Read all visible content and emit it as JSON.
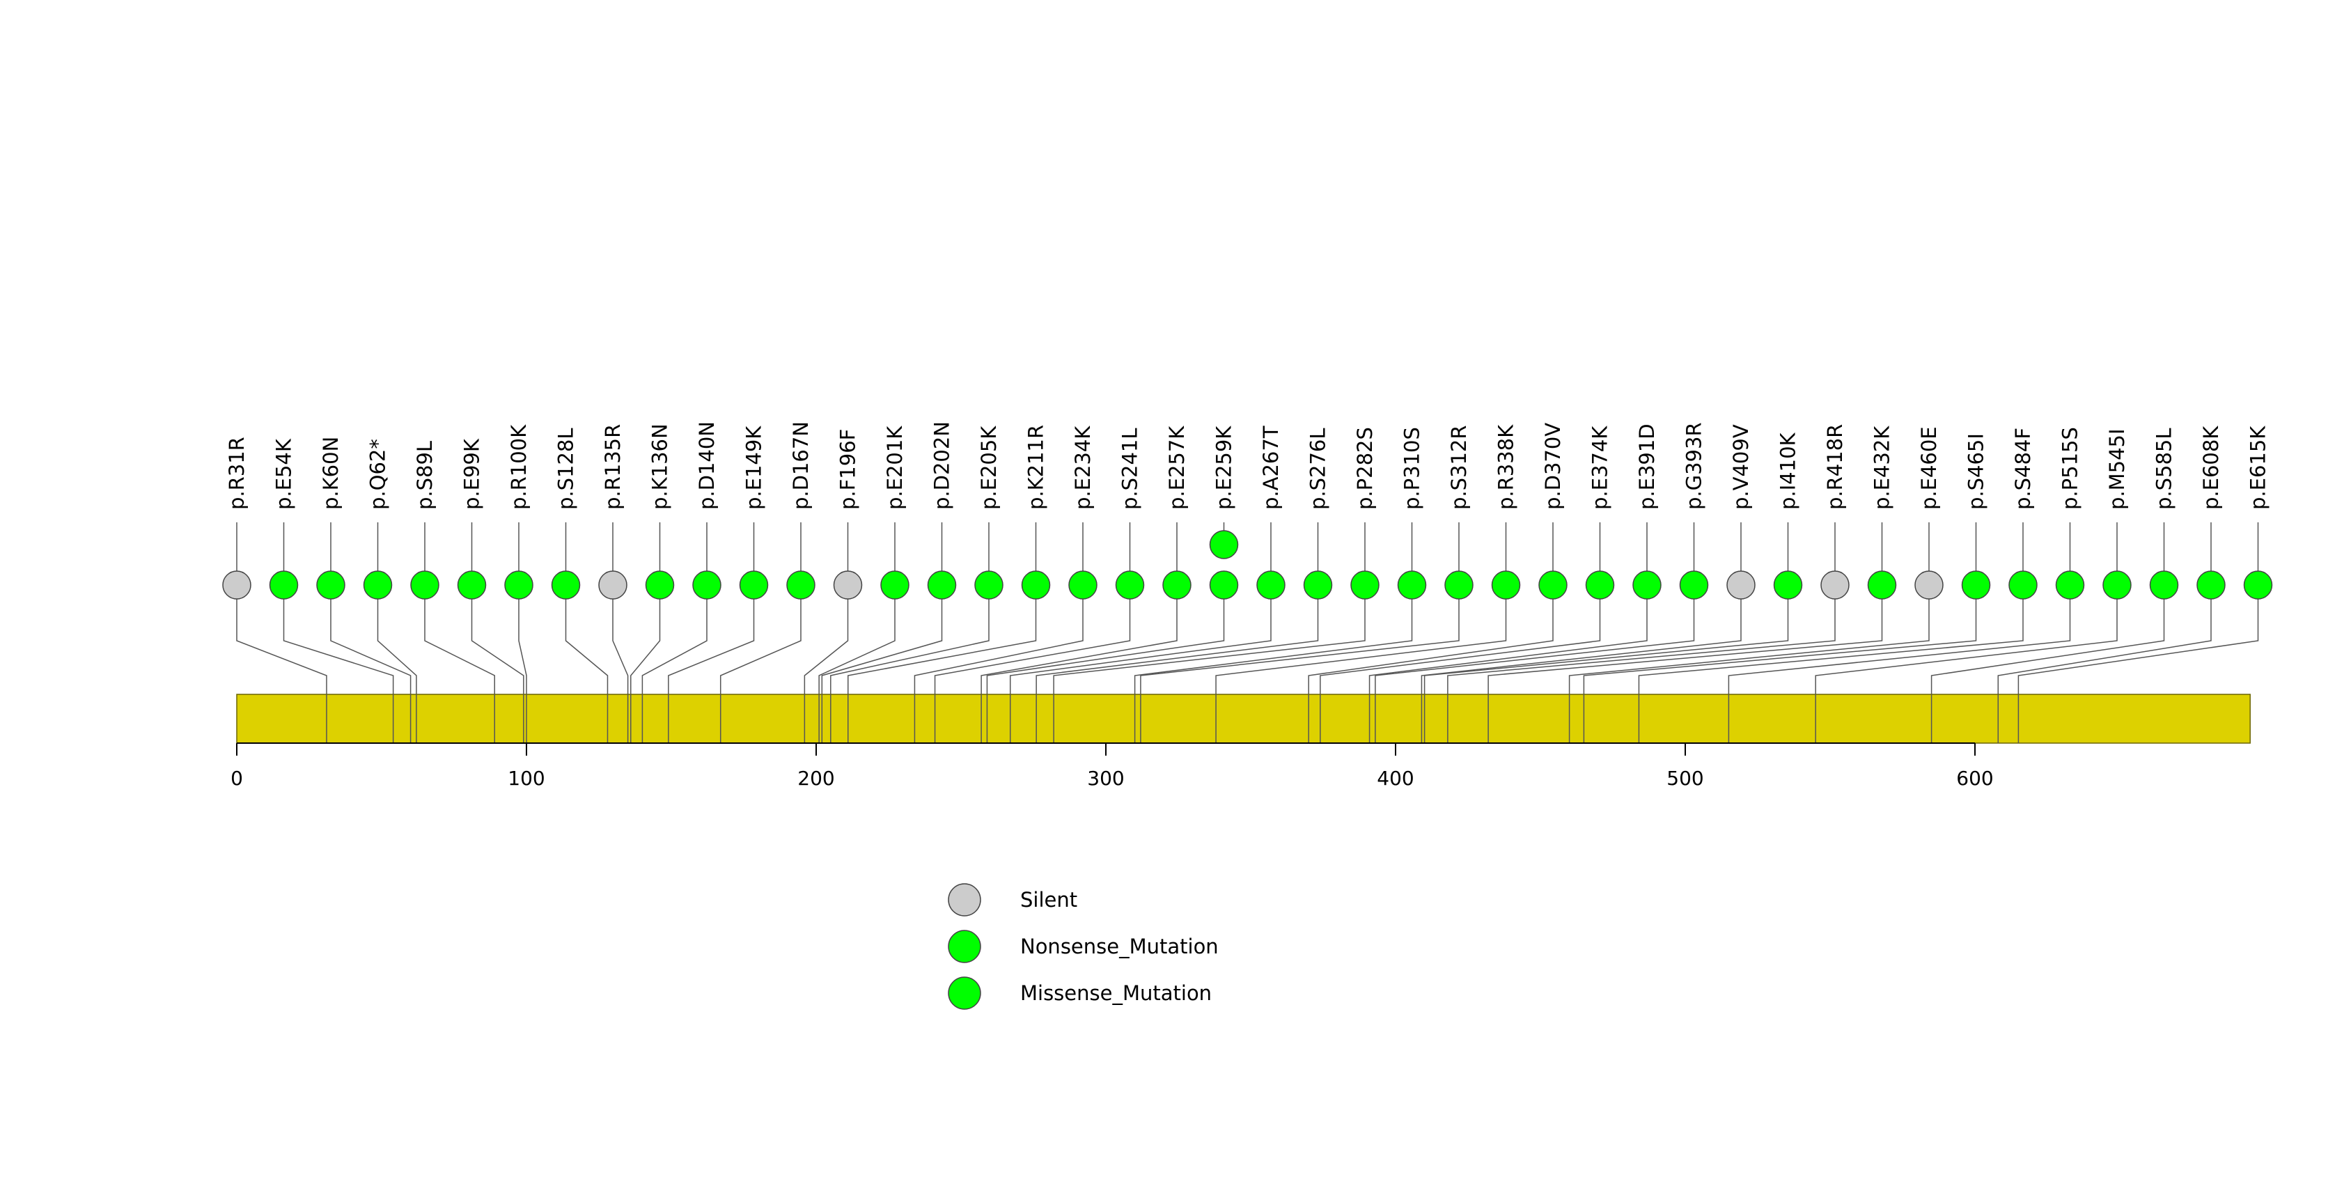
{
  "chart_data": {
    "type": "lollipop",
    "title": "",
    "xlabel": "",
    "ylabel": "",
    "xlim": [
      0,
      695
    ],
    "x_ticks": [
      0,
      100,
      200,
      300,
      400,
      500,
      600
    ],
    "mutations": [
      {
        "label": "p.R31R",
        "pos": 31,
        "type": "Silent",
        "count": 1
      },
      {
        "label": "p.E54K",
        "pos": 54,
        "type": "Missense_Mutation",
        "count": 1
      },
      {
        "label": "p.K60N",
        "pos": 60,
        "type": "Missense_Mutation",
        "count": 1
      },
      {
        "label": "p.Q62*",
        "pos": 62,
        "type": "Nonsense_Mutation",
        "count": 1
      },
      {
        "label": "p.S89L",
        "pos": 89,
        "type": "Missense_Mutation",
        "count": 1
      },
      {
        "label": "p.E99K",
        "pos": 99,
        "type": "Missense_Mutation",
        "count": 1
      },
      {
        "label": "p.R100K",
        "pos": 100,
        "type": "Missense_Mutation",
        "count": 1
      },
      {
        "label": "p.S128L",
        "pos": 128,
        "type": "Missense_Mutation",
        "count": 1
      },
      {
        "label": "p.R135R",
        "pos": 135,
        "type": "Silent",
        "count": 1
      },
      {
        "label": "p.K136N",
        "pos": 136,
        "type": "Missense_Mutation",
        "count": 1
      },
      {
        "label": "p.D140N",
        "pos": 140,
        "type": "Missense_Mutation",
        "count": 1
      },
      {
        "label": "p.E149K",
        "pos": 149,
        "type": "Missense_Mutation",
        "count": 1
      },
      {
        "label": "p.D167N",
        "pos": 167,
        "type": "Missense_Mutation",
        "count": 1
      },
      {
        "label": "p.F196F",
        "pos": 196,
        "type": "Silent",
        "count": 1
      },
      {
        "label": "p.E201K",
        "pos": 201,
        "type": "Missense_Mutation",
        "count": 1
      },
      {
        "label": "p.D202N",
        "pos": 202,
        "type": "Missense_Mutation",
        "count": 1
      },
      {
        "label": "p.E205K",
        "pos": 205,
        "type": "Missense_Mutation",
        "count": 1
      },
      {
        "label": "p.K211R",
        "pos": 211,
        "type": "Missense_Mutation",
        "count": 1
      },
      {
        "label": "p.E234K",
        "pos": 234,
        "type": "Missense_Mutation",
        "count": 1
      },
      {
        "label": "p.S241L",
        "pos": 241,
        "type": "Missense_Mutation",
        "count": 1
      },
      {
        "label": "p.E257K",
        "pos": 257,
        "type": "Missense_Mutation",
        "count": 1
      },
      {
        "label": "p.E259K",
        "pos": 259,
        "type": "Missense_Mutation",
        "count": 2
      },
      {
        "label": "p.A267T",
        "pos": 267,
        "type": "Missense_Mutation",
        "count": 1
      },
      {
        "label": "p.S276L",
        "pos": 276,
        "type": "Missense_Mutation",
        "count": 1
      },
      {
        "label": "p.P282S",
        "pos": 282,
        "type": "Missense_Mutation",
        "count": 1
      },
      {
        "label": "p.P310S",
        "pos": 310,
        "type": "Missense_Mutation",
        "count": 1
      },
      {
        "label": "p.S312R",
        "pos": 312,
        "type": "Missense_Mutation",
        "count": 1
      },
      {
        "label": "p.R338K",
        "pos": 338,
        "type": "Missense_Mutation",
        "count": 1
      },
      {
        "label": "p.D370V",
        "pos": 370,
        "type": "Missense_Mutation",
        "count": 1
      },
      {
        "label": "p.E374K",
        "pos": 374,
        "type": "Missense_Mutation",
        "count": 1
      },
      {
        "label": "p.E391D",
        "pos": 391,
        "type": "Missense_Mutation",
        "count": 1
      },
      {
        "label": "p.G393R",
        "pos": 393,
        "type": "Missense_Mutation",
        "count": 1
      },
      {
        "label": "p.V409V",
        "pos": 409,
        "type": "Silent",
        "count": 1
      },
      {
        "label": "p.I410K",
        "pos": 410,
        "type": "Missense_Mutation",
        "count": 1
      },
      {
        "label": "p.R418R",
        "pos": 418,
        "type": "Silent",
        "count": 1
      },
      {
        "label": "p.E432K",
        "pos": 432,
        "type": "Missense_Mutation",
        "count": 1
      },
      {
        "label": "p.E460E",
        "pos": 460,
        "type": "Silent",
        "count": 1
      },
      {
        "label": "p.S465I",
        "pos": 465,
        "type": "Missense_Mutation",
        "count": 1
      },
      {
        "label": "p.S484F",
        "pos": 484,
        "type": "Missense_Mutation",
        "count": 1
      },
      {
        "label": "p.P515S",
        "pos": 515,
        "type": "Missense_Mutation",
        "count": 1
      },
      {
        "label": "p.M545I",
        "pos": 545,
        "type": "Missense_Mutation",
        "count": 1
      },
      {
        "label": "p.S585L",
        "pos": 585,
        "type": "Missense_Mutation",
        "count": 1
      },
      {
        "label": "p.E608K",
        "pos": 608,
        "type": "Missense_Mutation",
        "count": 1
      },
      {
        "label": "p.E615K",
        "pos": 615,
        "type": "Missense_Mutation",
        "count": 1
      }
    ],
    "legend": [
      {
        "label": "Silent",
        "color": "#cccccc"
      },
      {
        "label": "Nonsense_Mutation",
        "color": "#00ff00"
      },
      {
        "label": "Missense_Mutation",
        "color": "#00ff00"
      }
    ],
    "legend_position": "bottom-center",
    "colors": {
      "silent": "#cccccc",
      "mutation": "#00ff00",
      "protein_bar": "#ddd100",
      "lines": "#555555"
    }
  }
}
